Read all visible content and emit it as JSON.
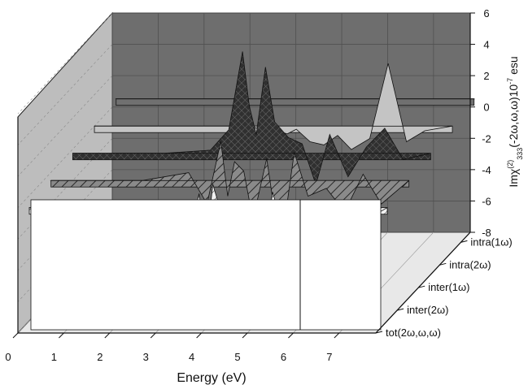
{
  "chart_data": {
    "type": "area",
    "subtype": "3d-waterfall",
    "xlabel": "Energy (eV)",
    "ylabel": "Imχ⁽²⁾₃₃₃(-2ω,ω,ω)10⁻⁷ esu",
    "ylabel_parts": {
      "main": "Imχ",
      "sup": "(2)",
      "sub": "333",
      "args": "(-2ω,ω,ω)10",
      "exp": "-7",
      "unit": "esu"
    },
    "x_ticks": [
      "0",
      "1",
      "2",
      "3",
      "4",
      "5",
      "6",
      "7"
    ],
    "y_ticks": [
      "6",
      "4",
      "2",
      "0",
      "-2",
      "-4",
      "-6",
      "-8"
    ],
    "xlim": [
      0,
      7.8
    ],
    "ylim": [
      -8,
      6
    ],
    "grid": true,
    "series_labels": [
      "intra(1ω)",
      "intra(2ω)",
      "inter(1ω)",
      "inter(2ω)",
      "tot(2ω,ω,ω)"
    ],
    "series": [
      {
        "name": "intra(1ω)",
        "color": "#707070",
        "pattern": "solid",
        "x": [
          0,
          1,
          2,
          3,
          3.4,
          3.7,
          3.85,
          4.0,
          4.2,
          4.4,
          4.7,
          5.0,
          5.3,
          5.6,
          6.0,
          6.4,
          6.8,
          7.2,
          7.8
        ],
        "values": [
          0,
          0,
          0,
          0,
          0,
          0,
          0,
          0,
          0,
          0,
          0,
          0,
          0,
          0,
          0,
          0,
          0,
          0,
          0
        ]
      },
      {
        "name": "intra(2ω)",
        "color": "#c4c4c4",
        "pattern": "solid",
        "x": [
          0,
          1,
          2,
          3,
          3.4,
          3.7,
          3.85,
          4.0,
          4.2,
          4.4,
          4.7,
          5.0,
          5.3,
          5.6,
          6.0,
          6.4,
          6.8,
          7.2,
          7.8
        ],
        "values": [
          0,
          0,
          0,
          0,
          0,
          -0.3,
          -0.4,
          -0.3,
          -0.5,
          -0.2,
          -1.0,
          -1.2,
          -0.6,
          -1.5,
          -0.8,
          4.0,
          -1.0,
          -0.3,
          0
        ]
      },
      {
        "name": "inter(1ω)",
        "color": "#303030",
        "pattern": "cross",
        "x": [
          0,
          1,
          2,
          3,
          3.4,
          3.7,
          3.85,
          4.0,
          4.2,
          4.4,
          4.7,
          5.0,
          5.3,
          5.6,
          6.0,
          6.4,
          6.8,
          7.2,
          7.8
        ],
        "values": [
          0,
          0,
          0,
          0.2,
          1.5,
          6.5,
          3.0,
          1.2,
          5.5,
          2.0,
          1.0,
          0.6,
          -2.0,
          1.2,
          -1.5,
          0.4,
          1.6,
          -0.4,
          0
        ]
      },
      {
        "name": "inter(2ω)",
        "color": "#8a8a8a",
        "pattern": "diag",
        "x": [
          0,
          1,
          2,
          3,
          3.4,
          3.7,
          3.85,
          4.0,
          4.2,
          4.4,
          4.7,
          5.0,
          5.3,
          5.6,
          6.0,
          6.4,
          6.8,
          7.2,
          7.8
        ],
        "values": [
          0,
          0,
          0,
          0.5,
          -1.5,
          2.5,
          -1.0,
          1.2,
          0.6,
          -2.5,
          1.4,
          -4.5,
          1.8,
          -1.0,
          -0.5,
          -2.0,
          0.4,
          -1.5,
          0
        ]
      },
      {
        "name": "tot(2ω,ω,ω)",
        "color": "#f2f2f2",
        "pattern": "diag",
        "x": [
          0,
          1,
          2,
          3,
          3.4,
          3.7,
          3.85,
          4.0,
          4.2,
          4.4,
          4.7,
          5.0,
          5.3,
          5.6,
          6.0,
          6.4,
          6.8,
          7.2,
          7.8
        ],
        "values": [
          0,
          0,
          0,
          -0.8,
          -3.0,
          0.9,
          -2.5,
          1.5,
          -0.5,
          -3.5,
          0.5,
          -5.5,
          1.0,
          -2.0,
          -1.5,
          -1.0,
          -0.5,
          -1.0,
          0
        ]
      }
    ]
  }
}
